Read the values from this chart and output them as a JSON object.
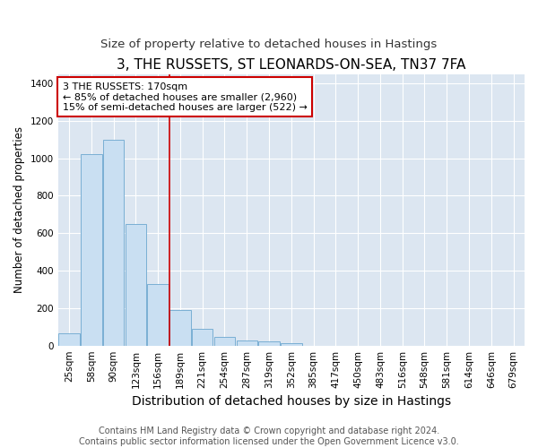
{
  "title": "3, THE RUSSETS, ST LEONARDS-ON-SEA, TN37 7FA",
  "subtitle": "Size of property relative to detached houses in Hastings",
  "xlabel": "Distribution of detached houses by size in Hastings",
  "ylabel": "Number of detached properties",
  "footer_line1": "Contains HM Land Registry data © Crown copyright and database right 2024.",
  "footer_line2": "Contains public sector information licensed under the Open Government Licence v3.0.",
  "categories": [
    "25sqm",
    "58sqm",
    "90sqm",
    "123sqm",
    "156sqm",
    "189sqm",
    "221sqm",
    "254sqm",
    "287sqm",
    "319sqm",
    "352sqm",
    "385sqm",
    "417sqm",
    "450sqm",
    "483sqm",
    "516sqm",
    "548sqm",
    "581sqm",
    "614sqm",
    "646sqm",
    "679sqm"
  ],
  "values": [
    65,
    1020,
    1100,
    650,
    330,
    190,
    90,
    48,
    25,
    20,
    15,
    0,
    0,
    0,
    0,
    0,
    0,
    0,
    0,
    0,
    0
  ],
  "bar_color": "#c9dff2",
  "bar_edge_color": "#7aafd4",
  "background_color": "#dce6f1",
  "annotation_text": "3 THE RUSSETS: 170sqm\n← 85% of detached houses are smaller (2,960)\n15% of semi-detached houses are larger (522) →",
  "annotation_box_color": "#ffffff",
  "annotation_box_edge": "#cc0000",
  "vline_position": 4.5,
  "vline_color": "#cc0000",
  "ylim": [
    0,
    1450
  ],
  "yticks": [
    0,
    200,
    400,
    600,
    800,
    1000,
    1200,
    1400
  ],
  "title_fontsize": 11,
  "subtitle_fontsize": 9.5,
  "xlabel_fontsize": 10,
  "ylabel_fontsize": 8.5,
  "tick_fontsize": 7.5,
  "annotation_fontsize": 8,
  "footer_fontsize": 7
}
